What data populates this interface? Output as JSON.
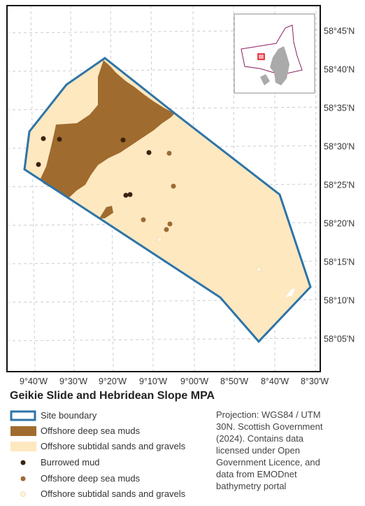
{
  "map": {
    "latitude_labels": [
      "58°45'N",
      "58°40'N",
      "58°35'N",
      "58°30'N",
      "58°25'N",
      "58°20'N",
      "58°15'N",
      "58°10'N",
      "58°05'N"
    ],
    "longitude_labels": [
      "9°40'W",
      "9°30'W",
      "9°20'W",
      "9°10'W",
      "9°00'W",
      "8°50'W",
      "8°40'W",
      "8°30'W"
    ]
  },
  "legend": {
    "title": "Geikie Slide and Hebridean Slope MPA",
    "items": [
      "Site boundary",
      "Offshore deep sea muds",
      "Offshore subtidal sands and gravels",
      "Burrowed mud",
      "Offshore deep sea muds",
      "Offshore subtidal sands and gravels"
    ]
  },
  "credits": "Projection: WGS84 / UTM 30N. Scottish Government (2024). Contains data licensed under Open Government Licence, and data from EMODnet bathymetry portal"
}
